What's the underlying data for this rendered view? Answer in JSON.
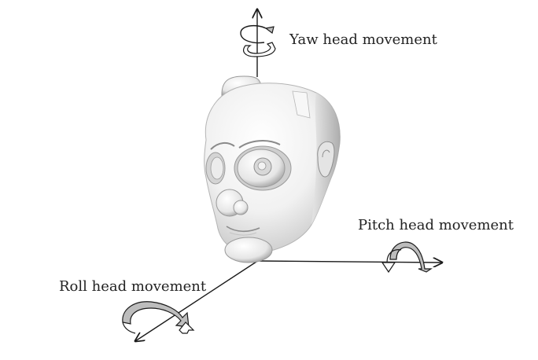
{
  "labels": {
    "yaw": "Yaw head movement",
    "pitch": "Pitch head movement",
    "roll": "Roll head movement"
  },
  "colors": {
    "line": "#1a1a1a",
    "rotation_arrow_fill": "#bdbdbd",
    "rotation_arrow_light": "#ffffff",
    "head_light": "#ffffff",
    "head_mid": "#dcdcdc",
    "head_shadow": "#9a9a9a"
  },
  "icons": {
    "yaw": "yaw-rotation-icon",
    "pitch": "pitch-rotation-icon",
    "roll": "roll-rotation-icon",
    "figure": "robot-head-icon"
  }
}
